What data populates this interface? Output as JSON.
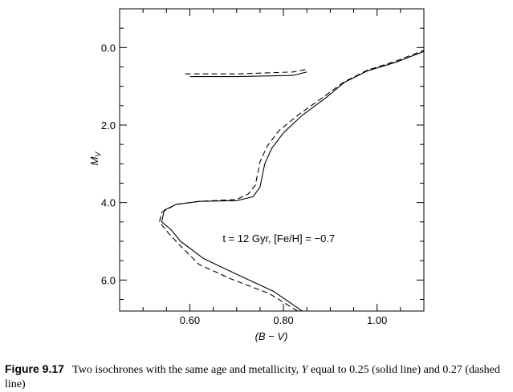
{
  "caption": {
    "label": "Figure 9.17",
    "text_before_Y": "Two isochrones with the same age and metallicity, ",
    "y_symbol": "Y",
    "text_after_Y": " equal to 0.25 (solid line) and 0.27 (dashed line)"
  },
  "chart_data": {
    "type": "line",
    "xlabel": "(B − V)",
    "ylabel": "M_V",
    "xlim": [
      0.45,
      1.1
    ],
    "ylim": [
      6.8,
      -1.0
    ],
    "y_inverted": true,
    "grid": false,
    "x_ticks": [
      0.6,
      0.8,
      1.0
    ],
    "x_tick_labels": [
      "0.60",
      "0.80",
      "1.00"
    ],
    "y_ticks": [
      0.0,
      2.0,
      4.0,
      6.0
    ],
    "y_tick_labels": [
      "0.0",
      "2.0",
      "4.0",
      "6.0"
    ],
    "annotation": {
      "text": "t = 12 Gyr, [Fe/H] = −0.7",
      "x": 0.79,
      "y": 4.92
    },
    "series": [
      {
        "name": "",
        "style": "solid",
        "segments": [
          [
            [
              0.84,
              6.8
            ],
            [
              0.78,
              6.3
            ],
            [
              0.7,
              5.85
            ],
            [
              0.63,
              5.45
            ],
            [
              0.58,
              5.0
            ],
            [
              0.56,
              4.7
            ],
            [
              0.54,
              4.5
            ],
            [
              0.545,
              4.2
            ],
            [
              0.57,
              4.05
            ],
            [
              0.62,
              3.97
            ],
            [
              0.7,
              3.95
            ],
            [
              0.735,
              3.85
            ],
            [
              0.75,
              3.6
            ],
            [
              0.755,
              3.3
            ],
            [
              0.76,
              3.0
            ],
            [
              0.775,
              2.6
            ],
            [
              0.8,
              2.2
            ],
            [
              0.84,
              1.75
            ],
            [
              0.89,
              1.3
            ],
            [
              0.93,
              0.9
            ],
            [
              0.98,
              0.6
            ],
            [
              1.04,
              0.38
            ],
            [
              1.1,
              0.1
            ]
          ],
          [
            [
              0.6,
              0.75
            ],
            [
              0.7,
              0.75
            ],
            [
              0.82,
              0.72
            ],
            [
              0.85,
              0.63
            ]
          ]
        ]
      },
      {
        "name": "",
        "style": "dashed",
        "segments": [
          [
            [
              0.83,
              6.8
            ],
            [
              0.77,
              6.35
            ],
            [
              0.69,
              5.98
            ],
            [
              0.62,
              5.6
            ],
            [
              0.58,
              5.12
            ],
            [
              0.555,
              4.8
            ],
            [
              0.535,
              4.5
            ],
            [
              0.54,
              4.25
            ],
            [
              0.57,
              4.05
            ],
            [
              0.62,
              3.97
            ],
            [
              0.7,
              3.92
            ],
            [
              0.725,
              3.78
            ],
            [
              0.74,
              3.55
            ],
            [
              0.745,
              3.25
            ],
            [
              0.75,
              2.95
            ],
            [
              0.765,
              2.55
            ],
            [
              0.79,
              2.15
            ],
            [
              0.83,
              1.75
            ],
            [
              0.885,
              1.28
            ],
            [
              0.93,
              0.88
            ],
            [
              0.98,
              0.58
            ],
            [
              1.04,
              0.35
            ],
            [
              1.1,
              0.07
            ]
          ],
          [
            [
              0.59,
              0.68
            ],
            [
              0.7,
              0.68
            ],
            [
              0.82,
              0.63
            ],
            [
              0.85,
              0.56
            ]
          ]
        ]
      }
    ]
  }
}
